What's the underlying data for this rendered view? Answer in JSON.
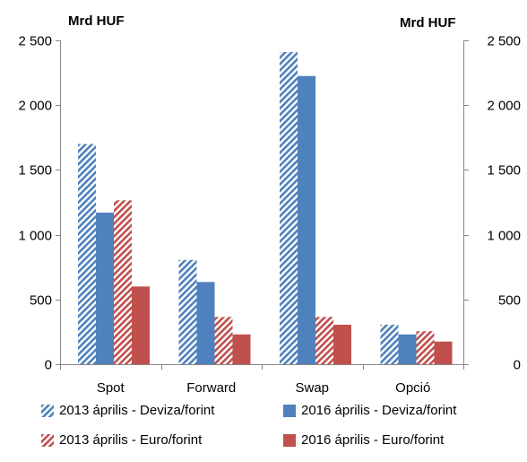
{
  "chart_data": {
    "type": "bar",
    "left_unit_label": "Mrd HUF",
    "right_unit_label": "Mrd HUF",
    "categories": [
      "Spot",
      "Forward",
      "Swap",
      "Opció"
    ],
    "ylim": [
      0,
      2500
    ],
    "y_ticks": [
      {
        "value": 0,
        "label": "0"
      },
      {
        "value": 500,
        "label": "500"
      },
      {
        "value": 1000,
        "label": "1 000"
      },
      {
        "value": 1500,
        "label": "1 500"
      },
      {
        "value": 2000,
        "label": "2 000"
      },
      {
        "value": 2500,
        "label": "2 500"
      }
    ],
    "grid": false,
    "legend_position": "bottom",
    "series": [
      {
        "name": "2013 április -  Deviza/forint",
        "color": "#4f81bd",
        "pattern": "hatched",
        "values": [
          1700,
          805,
          2410,
          305
        ]
      },
      {
        "name": "2016 április -  Deviza/forint",
        "color": "#4f81bd",
        "pattern": "solid",
        "values": [
          1170,
          635,
          2225,
          230
        ]
      },
      {
        "name": "2013 április -  Euro/forint",
        "color": "#c0504d",
        "pattern": "hatched",
        "values": [
          1265,
          365,
          365,
          255
        ]
      },
      {
        "name": "2016 április -  Euro/forint",
        "color": "#c0504d",
        "pattern": "solid",
        "values": [
          600,
          230,
          305,
          175
        ]
      }
    ]
  }
}
